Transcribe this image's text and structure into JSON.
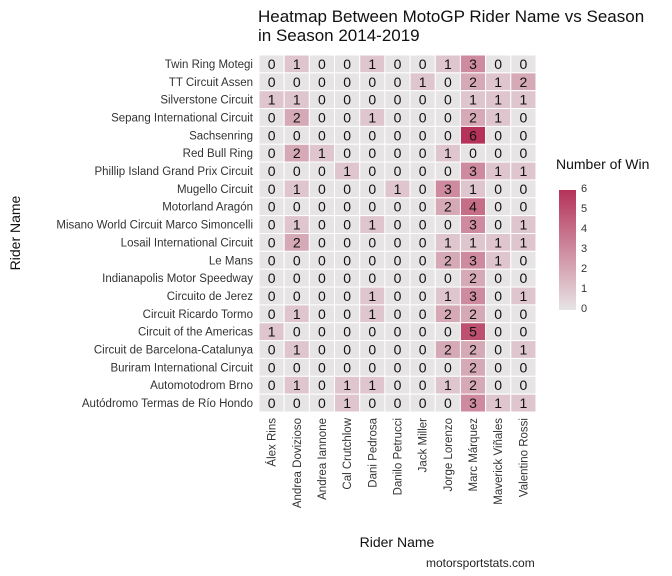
{
  "chart_data": {
    "type": "heatmap",
    "title_lines": [
      "Heatmap Between MotoGP Rider Name vs Season",
      "in Season 2014-2019"
    ],
    "xlabel": "Rider Name",
    "ylabel": "Rider Name",
    "x_categories": [
      "Álex Rins",
      "Andrea Dovizioso",
      "Andrea Iannone",
      "Cal Crutchlow",
      "Dani Pedrosa",
      "Danilo Petrucci",
      "Jack Miller",
      "Jorge Lorenzo",
      "Marc Márquez",
      "Maverick Viñales",
      "Valentino Rossi"
    ],
    "y_categories": [
      "Twin Ring Motegi",
      "TT Circuit Assen",
      "Silverstone Circuit",
      "Sepang International Circuit",
      "Sachsenring",
      "Red Bull Ring",
      "Phillip Island Grand Prix Circuit",
      "Mugello Circuit",
      "Motorland Aragón",
      "Misano World Circuit Marco Simoncelli",
      "Losail International Circuit",
      "Le Mans",
      "Indianapolis Motor Speedway",
      "Circuito de Jerez",
      "Circuit Ricardo Tormo",
      "Circuit of the Americas",
      "Circuit de Barcelona-Catalunya",
      "Buriram International Circuit",
      "Automotodrom Brno",
      "Autódromo Termas de Río Hondo"
    ],
    "values": [
      [
        0,
        1,
        0,
        0,
        1,
        0,
        0,
        1,
        3,
        0,
        0
      ],
      [
        0,
        0,
        0,
        0,
        0,
        0,
        1,
        0,
        2,
        1,
        2
      ],
      [
        1,
        1,
        0,
        0,
        0,
        0,
        0,
        0,
        1,
        1,
        1
      ],
      [
        0,
        2,
        0,
        0,
        1,
        0,
        0,
        0,
        2,
        1,
        0
      ],
      [
        0,
        0,
        0,
        0,
        0,
        0,
        0,
        0,
        6,
        0,
        0
      ],
      [
        0,
        2,
        1,
        0,
        0,
        0,
        0,
        1,
        0,
        0,
        0
      ],
      [
        0,
        0,
        0,
        1,
        0,
        0,
        0,
        0,
        3,
        1,
        1
      ],
      [
        0,
        1,
        0,
        0,
        0,
        1,
        0,
        3,
        1,
        0,
        0
      ],
      [
        0,
        0,
        0,
        0,
        0,
        0,
        0,
        2,
        4,
        0,
        0
      ],
      [
        0,
        1,
        0,
        0,
        1,
        0,
        0,
        0,
        3,
        0,
        1
      ],
      [
        0,
        2,
        0,
        0,
        0,
        0,
        0,
        1,
        1,
        1,
        1
      ],
      [
        0,
        0,
        0,
        0,
        0,
        0,
        0,
        2,
        3,
        1,
        0
      ],
      [
        0,
        0,
        0,
        0,
        0,
        0,
        0,
        0,
        2,
        0,
        0
      ],
      [
        0,
        0,
        0,
        0,
        1,
        0,
        0,
        1,
        3,
        0,
        1
      ],
      [
        0,
        1,
        0,
        0,
        1,
        0,
        0,
        2,
        2,
        0,
        0
      ],
      [
        1,
        0,
        0,
        0,
        0,
        0,
        0,
        0,
        5,
        0,
        0
      ],
      [
        0,
        1,
        0,
        0,
        0,
        0,
        0,
        2,
        2,
        0,
        1
      ],
      [
        0,
        0,
        0,
        0,
        0,
        0,
        0,
        0,
        2,
        0,
        0
      ],
      [
        0,
        1,
        0,
        1,
        1,
        0,
        0,
        1,
        2,
        0,
        0
      ],
      [
        0,
        0,
        0,
        1,
        0,
        0,
        0,
        0,
        3,
        1,
        1
      ]
    ],
    "legend": {
      "title": "Number of Win",
      "ticks": [
        0,
        1,
        2,
        3,
        4,
        5,
        6
      ],
      "range": [
        0,
        6
      ],
      "low_color": "#e7e4e5",
      "high_color": "#b5325a"
    },
    "background_color": "#ebebeb",
    "grid_color": "#ffffff"
  },
  "source": "motorsportstats.com"
}
